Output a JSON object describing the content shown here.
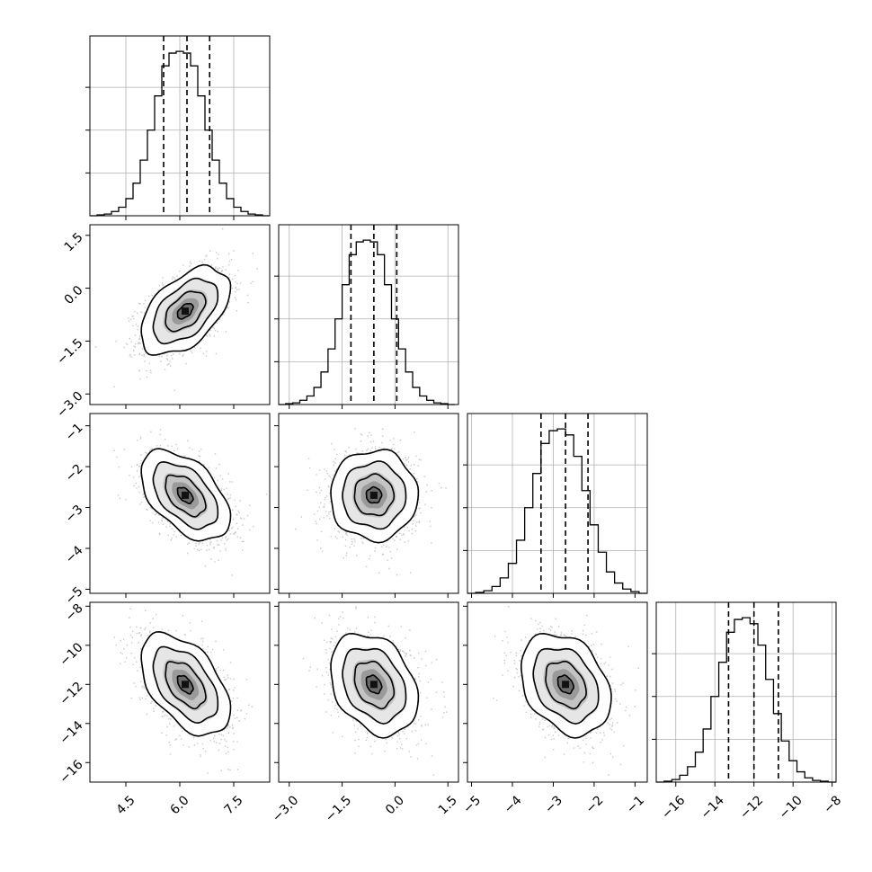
{
  "chart_data": {
    "type": "corner",
    "title": "",
    "parameters": [
      {
        "name": "",
        "range": [
          3.5,
          8.5
        ],
        "ticks": [
          4.5,
          6.0,
          7.5
        ],
        "tick_labels": [
          "4.5",
          "6.0",
          "7.5"
        ],
        "quantiles": [
          5.55,
          6.2,
          6.83
        ],
        "hist_x": [
          3.6,
          3.8,
          4.0,
          4.2,
          4.4,
          4.6,
          4.8,
          5.0,
          5.2,
          5.4,
          5.6,
          5.8,
          6.0,
          6.2,
          6.4,
          6.6,
          6.8,
          7.0,
          7.2,
          7.4,
          7.6,
          7.8,
          8.0,
          8.2,
          8.4
        ],
        "hist_counts": [
          0,
          1,
          2,
          5,
          10,
          20,
          38,
          65,
          100,
          140,
          175,
          190,
          192,
          190,
          175,
          140,
          100,
          65,
          38,
          20,
          10,
          5,
          2,
          1,
          0
        ]
      },
      {
        "name": "",
        "range": [
          -3.3,
          1.8
        ],
        "ticks": [
          -3.0,
          -1.5,
          0.0,
          1.5
        ],
        "tick_labels": [
          "−3.0",
          "−1.5",
          "0.0",
          "1.5"
        ],
        "quantiles": [
          -1.25,
          -0.6,
          0.05
        ],
        "hist_x": [
          -3.2,
          -3.0,
          -2.8,
          -2.6,
          -2.4,
          -2.2,
          -2.0,
          -1.8,
          -1.6,
          -1.4,
          -1.2,
          -1.0,
          -0.8,
          -0.6,
          -0.4,
          -0.2,
          0.0,
          0.2,
          0.4,
          0.6,
          0.8,
          1.0,
          1.2,
          1.4,
          1.6
        ],
        "hist_counts": [
          0,
          1,
          2,
          5,
          10,
          20,
          38,
          65,
          100,
          140,
          175,
          190,
          192,
          190,
          175,
          140,
          100,
          65,
          38,
          20,
          10,
          5,
          2,
          1,
          0
        ]
      },
      {
        "name": "",
        "range": [
          -5.1,
          -0.7
        ],
        "ticks": [
          -5,
          -4,
          -3,
          -2,
          -1
        ],
        "tick_labels": [
          "−5",
          "−4",
          "−3",
          "−2",
          "−1"
        ],
        "quantiles": [
          -3.3,
          -2.7,
          -2.15
        ],
        "hist_x": [
          -5.0,
          -4.8,
          -4.6,
          -4.4,
          -4.2,
          -4.0,
          -3.8,
          -3.6,
          -3.4,
          -3.2,
          -3.0,
          -2.8,
          -2.6,
          -2.4,
          -2.2,
          -2.0,
          -1.8,
          -1.6,
          -1.4,
          -1.2,
          -1.0,
          -0.8
        ],
        "hist_counts": [
          0,
          1,
          3,
          8,
          18,
          35,
          62,
          100,
          140,
          175,
          190,
          192,
          185,
          160,
          120,
          80,
          48,
          25,
          12,
          5,
          2,
          0
        ]
      },
      {
        "name": "",
        "range": [
          -17.0,
          -7.8
        ],
        "ticks": [
          -16,
          -14,
          -12,
          -10,
          -8
        ],
        "tick_labels": [
          "−16",
          "−14",
          "−12",
          "−10",
          "−8"
        ],
        "quantiles": [
          -13.3,
          -12.0,
          -10.75
        ],
        "hist_x": [
          -16.8,
          -16.4,
          -16.0,
          -15.6,
          -15.2,
          -14.8,
          -14.4,
          -14.0,
          -13.6,
          -13.2,
          -12.8,
          -12.4,
          -12.0,
          -11.6,
          -11.2,
          -10.8,
          -10.4,
          -10.0,
          -9.6,
          -9.2,
          -8.8,
          -8.4,
          -8.0
        ],
        "hist_counts": [
          0,
          1,
          3,
          8,
          18,
          35,
          62,
          100,
          140,
          175,
          190,
          192,
          185,
          160,
          120,
          80,
          48,
          25,
          12,
          5,
          2,
          1,
          0
        ]
      }
    ],
    "hist_ylim": [
      0,
      210
    ],
    "pairs": [
      {
        "row": 1,
        "col": 0,
        "mean": [
          6.15,
          -0.65
        ],
        "sd": [
          0.62,
          0.62
        ],
        "rho": 0.5
      },
      {
        "row": 2,
        "col": 0,
        "mean": [
          6.15,
          -2.7
        ],
        "sd": [
          0.62,
          0.55
        ],
        "rho": -0.5
      },
      {
        "row": 2,
        "col": 1,
        "mean": [
          -0.6,
          -2.7
        ],
        "sd": [
          0.62,
          0.55
        ],
        "rho": 0.0
      },
      {
        "row": 3,
        "col": 0,
        "mean": [
          6.15,
          -12.0
        ],
        "sd": [
          0.62,
          1.3
        ],
        "rho": -0.5
      },
      {
        "row": 3,
        "col": 1,
        "mean": [
          -0.6,
          -12.0
        ],
        "sd": [
          0.62,
          1.3
        ],
        "rho": -0.3
      },
      {
        "row": 3,
        "col": 2,
        "mean": [
          -2.7,
          -12.0
        ],
        "sd": [
          0.55,
          1.3
        ],
        "rho": -0.3
      }
    ],
    "contour_levels_sigma": [
      0.5,
      1.0,
      1.5,
      2.0
    ],
    "grid": true
  }
}
